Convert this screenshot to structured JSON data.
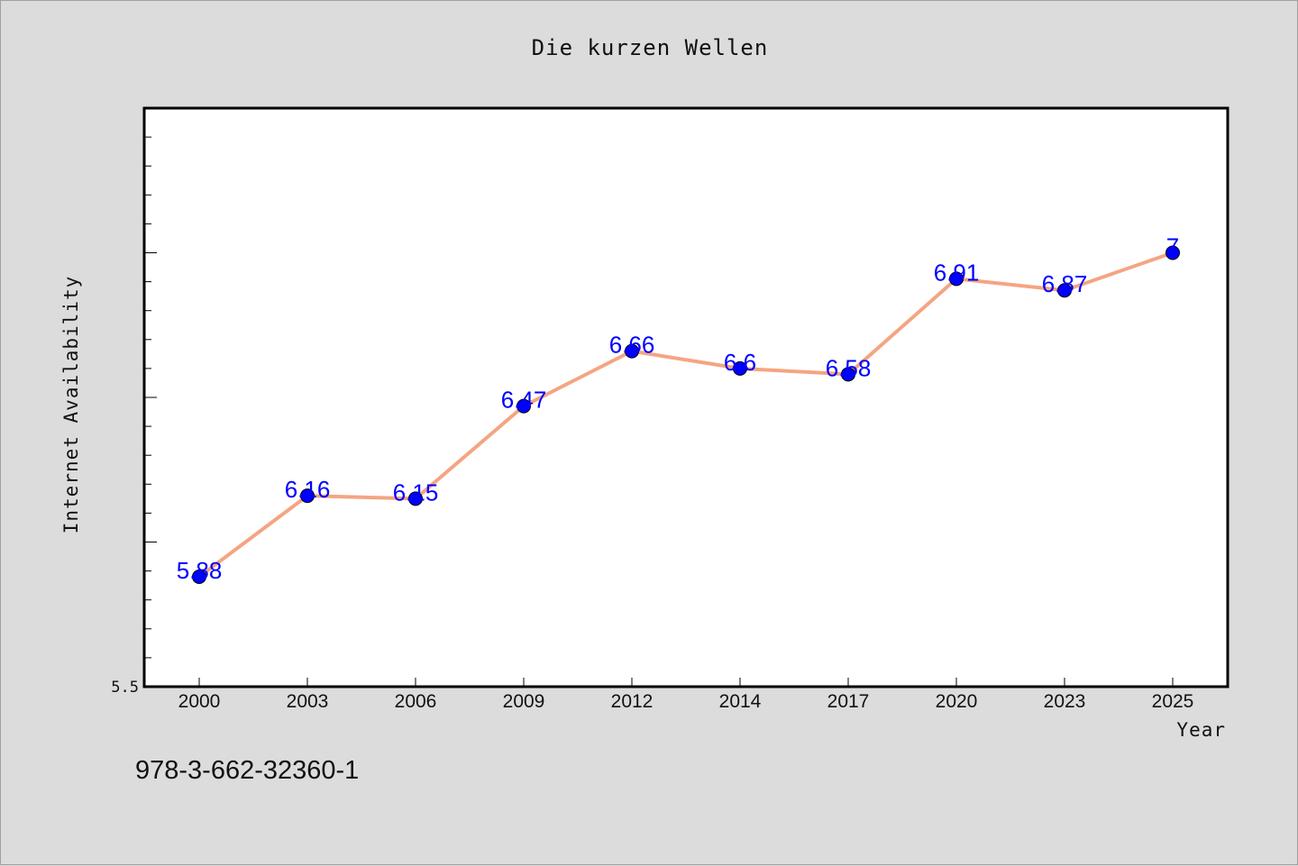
{
  "chart_data": {
    "type": "line",
    "title": "Die kurzen Wellen",
    "xlabel": "Year",
    "ylabel": "Internet Availability",
    "categories": [
      "2000",
      "2003",
      "2006",
      "2009",
      "2012",
      "2014",
      "2017",
      "2020",
      "2023",
      "2025"
    ],
    "series": [
      {
        "values": [
          5.88,
          6.16,
          6.15,
          6.47,
          6.66,
          6.6,
          6.58,
          6.91,
          6.87,
          7
        ],
        "data_labels": [
          "5.88",
          "6.16",
          "6.15",
          "6.47",
          "6.66",
          "6.6",
          "6.58",
          "6.91",
          "6.87",
          "7"
        ],
        "line_color": "#f4a582",
        "marker_color": "#0000ff",
        "label_color": "#0000ff"
      }
    ],
    "ylim": [
      5.5,
      7.5
    ],
    "yticks": [
      5.5
    ],
    "ytick_labels": [
      "5.5"
    ],
    "grid": false,
    "legend": "none"
  },
  "footer_text": "978-3-662-32360-1",
  "colors": {
    "background": "#dcdcdc",
    "plot_background": "#ffffff",
    "axis": "#000000"
  }
}
